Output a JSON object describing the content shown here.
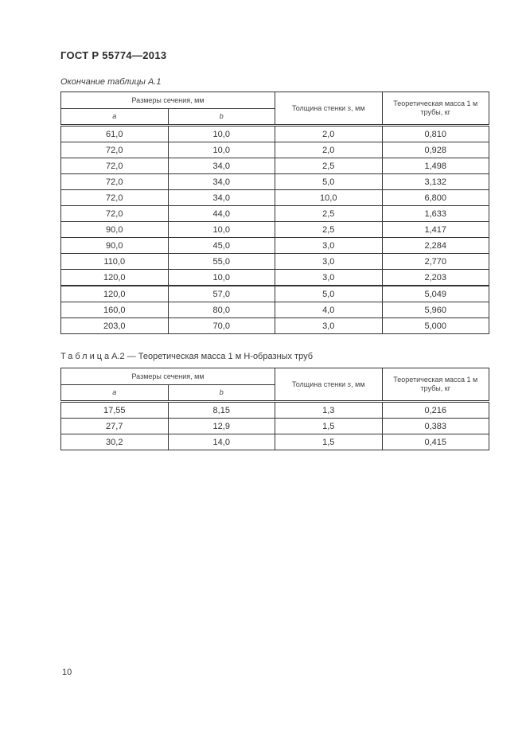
{
  "page": {
    "standard": "ГОСТ Р 55774—2013",
    "number": "10"
  },
  "table_a1": {
    "continuation_caption": "Окончание таблицы А.1",
    "header": {
      "dimensions": "Размеры сечения, мм",
      "col_a": "a",
      "col_b": "b",
      "thickness_prefix": "Толщина стенки ",
      "thickness_symbol": "s",
      "thickness_suffix": ", мм",
      "mass_line1": "Теоретическая масса 1 м",
      "mass_line2": "трубы, кг"
    },
    "section_break_after": 10,
    "rows": [
      [
        "61,0",
        "10,0",
        "2,0",
        "0,810"
      ],
      [
        "72,0",
        "10,0",
        "2,0",
        "0,928"
      ],
      [
        "72,0",
        "34,0",
        "2,5",
        "1,498"
      ],
      [
        "72,0",
        "34,0",
        "5,0",
        "3,132"
      ],
      [
        "72,0",
        "34,0",
        "10,0",
        "6,800"
      ],
      [
        "72,0",
        "44,0",
        "2,5",
        "1,633"
      ],
      [
        "90,0",
        "10,0",
        "2,5",
        "1,417"
      ],
      [
        "90,0",
        "45,0",
        "3,0",
        "2,284"
      ],
      [
        "110,0",
        "55,0",
        "3,0",
        "2,770"
      ],
      [
        "120,0",
        "10,0",
        "3,0",
        "2,203"
      ],
      [
        "120,0",
        "57,0",
        "5,0",
        "5,049"
      ],
      [
        "160,0",
        "80,0",
        "4,0",
        "5,960"
      ],
      [
        "203,0",
        "70,0",
        "3,0",
        "5,000"
      ]
    ]
  },
  "table_a2": {
    "caption_label": "Таблица",
    "caption_rest": "А.2 — Теоретическая масса 1 м Н-образных труб",
    "header": {
      "dimensions": "Размеры сечения, мм",
      "col_a": "a",
      "col_b": "b",
      "thickness_prefix": "Толщина стенки ",
      "thickness_symbol": "s",
      "thickness_suffix": ", мм",
      "mass_line1": "Теоретическая масса 1 м",
      "mass_line2": "трубы, кг"
    },
    "rows": [
      [
        "17,55",
        "8,15",
        "1,3",
        "0,216"
      ],
      [
        "27,7",
        "12,9",
        "1,5",
        "0,383"
      ],
      [
        "30,2",
        "14,0",
        "1,5",
        "0,415"
      ]
    ]
  }
}
